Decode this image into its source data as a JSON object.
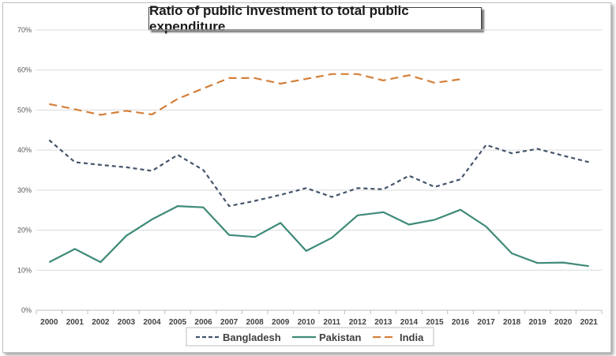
{
  "chart_data": {
    "type": "line",
    "title": "Ratio of public investment to total public expenditure",
    "xlabel": "",
    "ylabel": "",
    "x": [
      "2000",
      "2001",
      "2002",
      "2003",
      "2004",
      "2005",
      "2006",
      "2007",
      "2008",
      "2009",
      "2010",
      "2011",
      "2012",
      "2013",
      "2014",
      "2015",
      "2016",
      "2017",
      "2018",
      "2019",
      "2020",
      "2021"
    ],
    "ylim": [
      0,
      70
    ],
    "yticks": [
      "0%",
      "10%",
      "20%",
      "30%",
      "40%",
      "50%",
      "60%",
      "70%"
    ],
    "grid": true,
    "legend_position": "bottom",
    "series": [
      {
        "name": "Bangladesh",
        "color": "#44546a",
        "style": "dashed",
        "values": [
          42.5,
          37.0,
          36.3,
          35.7,
          34.8,
          38.8,
          35.0,
          26.0,
          27.3,
          28.8,
          30.5,
          28.3,
          30.5,
          30.2,
          33.6,
          30.8,
          32.7,
          41.3,
          39.2,
          40.3,
          38.6,
          37.0
        ]
      },
      {
        "name": "Pakistan",
        "color": "#3e8a78",
        "style": "solid",
        "values": [
          12.0,
          15.3,
          12.0,
          18.6,
          22.7,
          26.0,
          25.7,
          18.8,
          18.3,
          21.8,
          14.8,
          18.1,
          23.7,
          24.5,
          21.4,
          22.6,
          25.1,
          20.9,
          14.2,
          11.8,
          11.9,
          11.0
        ]
      },
      {
        "name": "India",
        "color": "#d4803a",
        "style": "longdash",
        "values": [
          51.5,
          50.2,
          48.8,
          49.8,
          48.9,
          52.8,
          55.4,
          58.0,
          58.0,
          56.6,
          57.8,
          59.0,
          59.0,
          57.4,
          58.7,
          56.8,
          57.7,
          null,
          null,
          null,
          null,
          null
        ]
      }
    ]
  }
}
